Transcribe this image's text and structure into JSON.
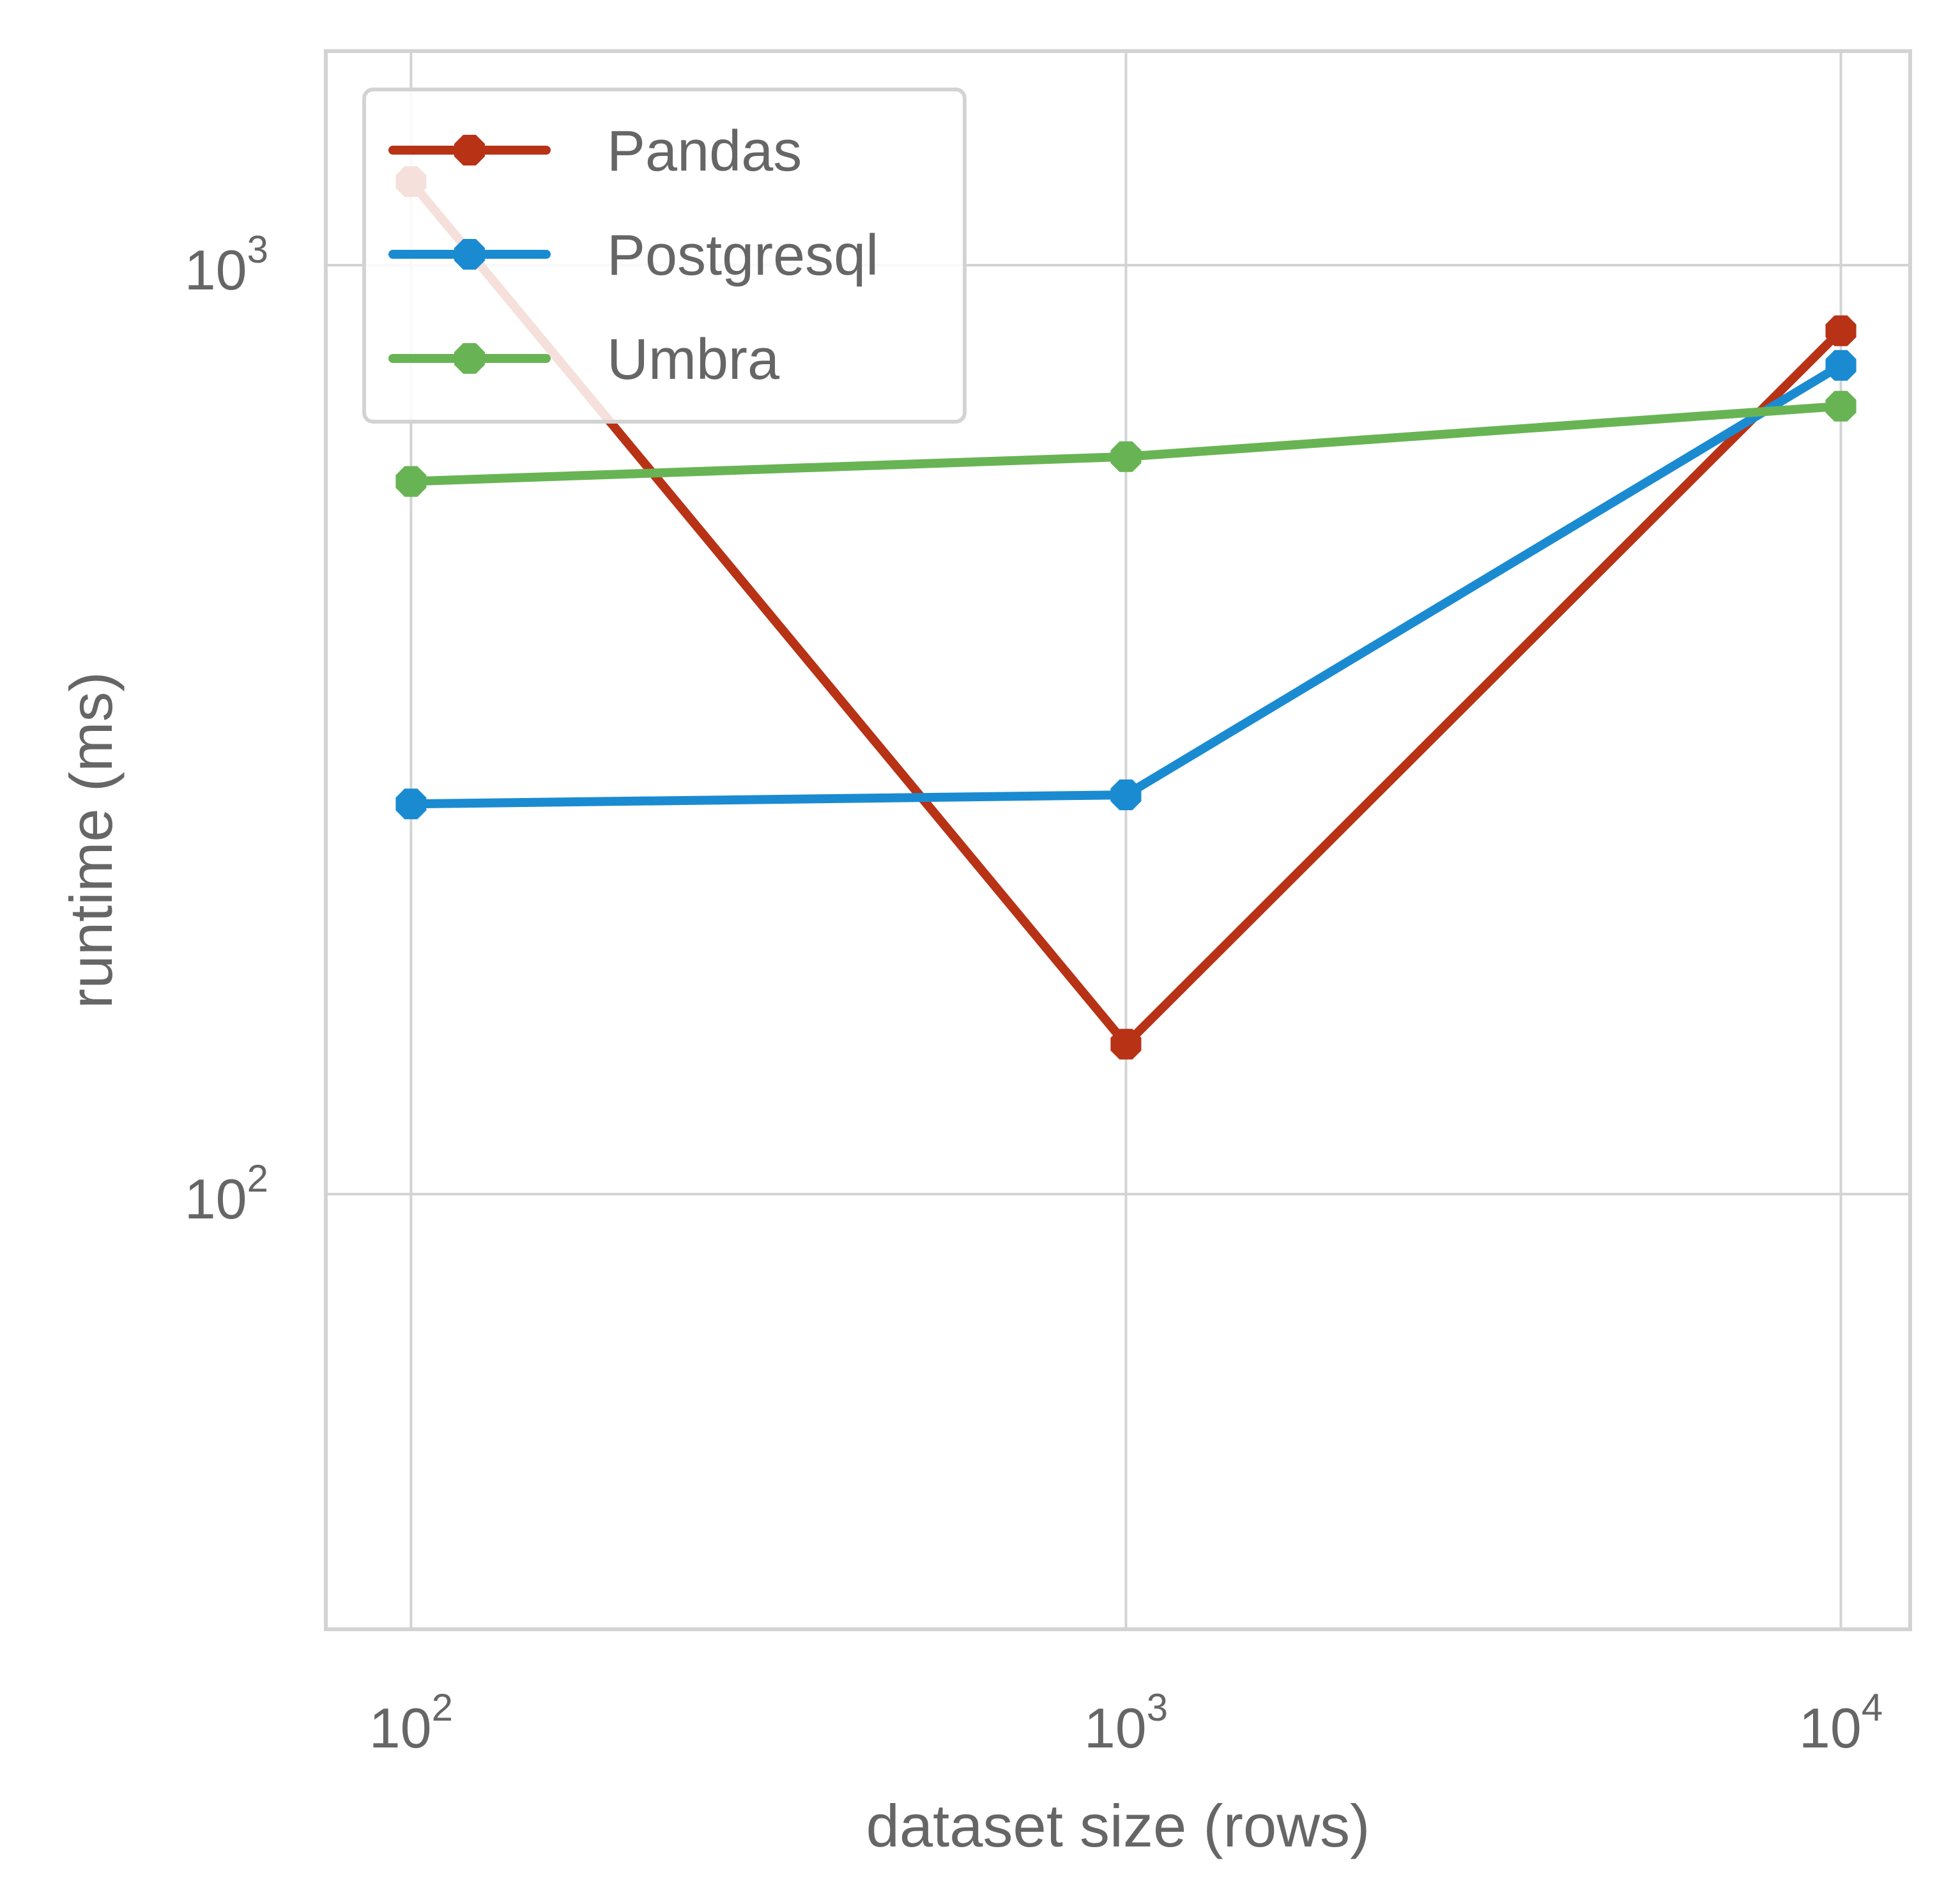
{
  "chart_data": {
    "type": "line",
    "xlabel": "dataset size (rows)",
    "ylabel": "runtime (ms)",
    "xscale": "log",
    "yscale": "log",
    "xlim": [
      76,
      12500
    ],
    "ylim": [
      34,
      1700
    ],
    "x": [
      100,
      1000,
      10000
    ],
    "xticks": [
      {
        "value": 100,
        "base": "10",
        "exp": "2"
      },
      {
        "value": 1000,
        "base": "10",
        "exp": "3"
      },
      {
        "value": 10000,
        "base": "10",
        "exp": "4"
      }
    ],
    "yticks": [
      {
        "value": 100,
        "base": "10",
        "exp": "2"
      },
      {
        "value": 1000,
        "base": "10",
        "exp": "3"
      }
    ],
    "grid": true,
    "legend_position": "top-left",
    "series": [
      {
        "name": "Pandas",
        "color": "#B83216",
        "values": [
          1230,
          145,
          850
        ]
      },
      {
        "name": "Postgresql",
        "color": "#1A8BD1",
        "values": [
          263,
          269,
          780
        ]
      },
      {
        "name": "Umbra",
        "color": "#68B454",
        "values": [
          585,
          622,
          705
        ]
      }
    ],
    "colors": {
      "grid": "#D3D3D3",
      "frame": "#D3D3D3",
      "text": "#666666"
    }
  }
}
